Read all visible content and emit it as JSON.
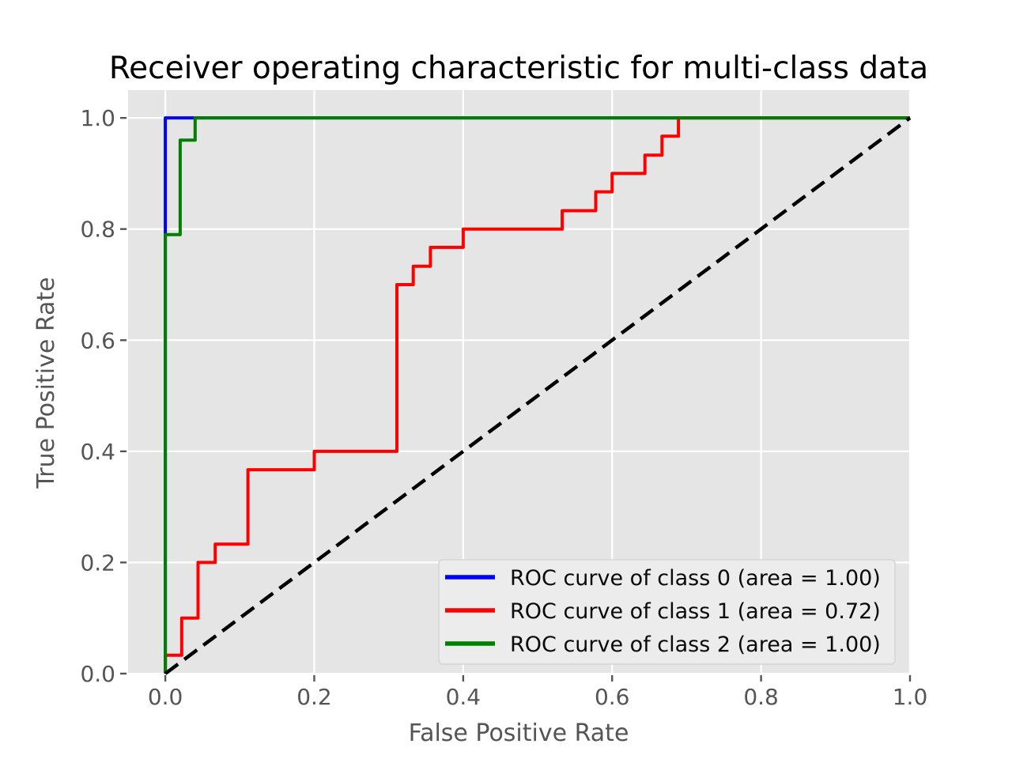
{
  "figure": {
    "title": "Receiver operating characteristic for multi-class data"
  },
  "colors": {
    "page_background": "#ffffff",
    "plot_background": "#e5e5e5",
    "grid": "#ffffff",
    "tick": "#555555",
    "axis_label": "#555555",
    "title": "#000000",
    "legend_background": "#ececec",
    "legend_border": "#d5d5d5",
    "legend_text": "#0a0a0a",
    "class0": "#0000ff",
    "class1": "#ff0000",
    "class2": "#008000",
    "chance_line": "#000000"
  },
  "chart_data": {
    "type": "line",
    "title": "Receiver operating characteristic for multi-class data",
    "xlabel": "False Positive Rate",
    "ylabel": "True Positive Rate",
    "xlim": [
      -0.05,
      1.0
    ],
    "ylim": [
      0.0,
      1.05
    ],
    "xticks": [
      0.0,
      0.2,
      0.4,
      0.6,
      0.8,
      1.0
    ],
    "xtick_labels": [
      "0.0",
      "0.2",
      "0.4",
      "0.6",
      "0.8",
      "1.0"
    ],
    "yticks": [
      0.0,
      0.2,
      0.4,
      0.6,
      0.8,
      1.0
    ],
    "ytick_labels": [
      "0.0",
      "0.2",
      "0.4",
      "0.6",
      "0.8",
      "1.0"
    ],
    "grid": true,
    "legend_position": "lower right",
    "series": [
      {
        "name": "ROC curve of class 0 (area = 1.00)",
        "auc": "1.00",
        "color": "#0000ff",
        "style": "solid",
        "legend": true,
        "points": [
          [
            0,
            0
          ],
          [
            0,
            1.0
          ],
          [
            1.0,
            1.0
          ]
        ]
      },
      {
        "name": "ROC curve of class 1 (area = 0.72)",
        "auc": "0.72",
        "color": "#ff0000",
        "style": "solid",
        "legend": true,
        "points": [
          [
            0,
            0
          ],
          [
            0,
            0.033
          ],
          [
            0.022,
            0.033
          ],
          [
            0.022,
            0.1
          ],
          [
            0.044,
            0.1
          ],
          [
            0.044,
            0.2
          ],
          [
            0.067,
            0.2
          ],
          [
            0.067,
            0.233
          ],
          [
            0.111,
            0.233
          ],
          [
            0.111,
            0.367
          ],
          [
            0.2,
            0.367
          ],
          [
            0.2,
            0.4
          ],
          [
            0.311,
            0.4
          ],
          [
            0.311,
            0.7
          ],
          [
            0.333,
            0.7
          ],
          [
            0.333,
            0.733
          ],
          [
            0.356,
            0.733
          ],
          [
            0.356,
            0.767
          ],
          [
            0.4,
            0.767
          ],
          [
            0.4,
            0.8
          ],
          [
            0.533,
            0.8
          ],
          [
            0.533,
            0.833
          ],
          [
            0.578,
            0.833
          ],
          [
            0.578,
            0.867
          ],
          [
            0.6,
            0.867
          ],
          [
            0.6,
            0.9
          ],
          [
            0.644,
            0.9
          ],
          [
            0.644,
            0.933
          ],
          [
            0.667,
            0.933
          ],
          [
            0.667,
            0.967
          ],
          [
            0.689,
            0.967
          ],
          [
            0.689,
            1.0
          ],
          [
            1.0,
            1.0
          ]
        ]
      },
      {
        "name": "ROC curve of class 2 (area = 1.00)",
        "auc": "1.00",
        "color": "#008000",
        "style": "solid",
        "legend": true,
        "points": [
          [
            0,
            0
          ],
          [
            0,
            0.79
          ],
          [
            0.02,
            0.79
          ],
          [
            0.02,
            0.96
          ],
          [
            0.04,
            0.96
          ],
          [
            0.04,
            1.0
          ],
          [
            1.0,
            1.0
          ]
        ]
      },
      {
        "name": "chance diagonal",
        "color": "#000000",
        "style": "dashed",
        "legend": false,
        "points": [
          [
            0,
            0
          ],
          [
            1.0,
            1.0
          ]
        ]
      }
    ]
  }
}
